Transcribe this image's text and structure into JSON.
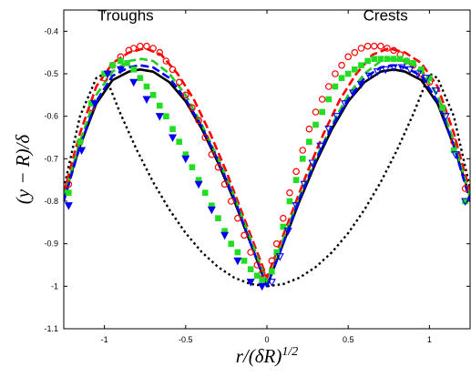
{
  "chart_data": {
    "type": "scatter",
    "xlabel": "r/(δR)^{1/2}",
    "ylabel": "(y − R)/δ",
    "xlim": [
      -1.25,
      1.25
    ],
    "ylim": [
      -1.1,
      -0.35
    ],
    "x_ticks": [
      -1,
      -0.5,
      0,
      0.5,
      1
    ],
    "x_tick_labels": [
      "-1",
      "-0.5",
      "0",
      "0.5",
      "1"
    ],
    "y_ticks": [
      -1.1,
      -1.0,
      -0.9,
      -0.8,
      -0.7,
      -0.6,
      -0.5,
      -0.4
    ],
    "y_tick_labels": [
      "-1.1",
      "-1",
      "-0.9",
      "-0.8",
      "-0.7",
      "-0.6",
      "-0.5",
      "-0.4"
    ],
    "grid": false,
    "annotations": [
      {
        "text": "Troughs",
        "x": -0.87,
        "y": -0.375
      },
      {
        "text": "Crests",
        "x": 0.73,
        "y": -0.375
      }
    ],
    "series": [
      {
        "style": "solid-line",
        "color": "#000000",
        "x": [
          -1.25,
          -1.15,
          -1.05,
          -0.95,
          -0.85,
          -0.78,
          -0.7,
          -0.6,
          -0.5,
          -0.4,
          -0.3,
          -0.2,
          -0.1,
          0,
          0.1,
          0.2,
          0.3,
          0.4,
          0.5,
          0.6,
          0.7,
          0.78,
          0.85,
          0.95,
          1.05,
          1.15,
          1.25
        ],
        "y": [
          -0.79,
          -0.67,
          -0.57,
          -0.515,
          -0.495,
          -0.49,
          -0.495,
          -0.52,
          -0.565,
          -0.63,
          -0.71,
          -0.8,
          -0.9,
          -1.0,
          -0.9,
          -0.8,
          -0.71,
          -0.63,
          -0.565,
          -0.52,
          -0.495,
          -0.49,
          -0.495,
          -0.515,
          -0.57,
          -0.67,
          -0.79
        ]
      },
      {
        "style": "dotted-line",
        "color": "#000000",
        "x": [
          -1.25,
          -1.15,
          -1.05,
          -1.0,
          -0.9,
          -0.8,
          -0.7,
          -0.6,
          -0.5,
          -0.4,
          -0.3,
          -0.2,
          -0.1,
          0,
          0.1,
          0.2,
          0.3,
          0.4,
          0.5,
          0.6,
          0.7,
          0.8,
          0.9,
          1.0,
          1.05,
          1.15,
          1.25
        ],
        "y": [
          -0.77,
          -0.6,
          -0.51,
          -0.5,
          -0.595,
          -0.68,
          -0.755,
          -0.82,
          -0.875,
          -0.92,
          -0.955,
          -0.98,
          -0.995,
          -1.0,
          -0.995,
          -0.98,
          -0.955,
          -0.92,
          -0.875,
          -0.82,
          -0.755,
          -0.68,
          -0.595,
          -0.5,
          -0.51,
          -0.6,
          -0.77
        ]
      },
      {
        "style": "dashed-line",
        "color": "#ff0000",
        "x": [
          -1.25,
          -1.15,
          -1.05,
          -0.95,
          -0.85,
          -0.75,
          -0.65,
          -0.55,
          -0.45,
          -0.35,
          -0.25,
          -0.15,
          -0.05,
          0,
          0.05,
          0.15,
          0.25,
          0.35,
          0.45,
          0.55,
          0.65,
          0.75,
          0.85,
          0.95,
          1.05,
          1.15,
          1.25
        ],
        "y": [
          -0.78,
          -0.64,
          -0.53,
          -0.475,
          -0.45,
          -0.44,
          -0.455,
          -0.5,
          -0.56,
          -0.64,
          -0.73,
          -0.83,
          -0.93,
          -0.98,
          -0.93,
          -0.83,
          -0.73,
          -0.64,
          -0.56,
          -0.5,
          -0.455,
          -0.44,
          -0.45,
          -0.475,
          -0.53,
          -0.64,
          -0.78
        ]
      },
      {
        "style": "dashed-line",
        "color": "#22cc22",
        "x": [
          -1.25,
          -1.15,
          -1.05,
          -0.95,
          -0.85,
          -0.77,
          -0.7,
          -0.6,
          -0.5,
          -0.4,
          -0.3,
          -0.2,
          -0.1,
          0,
          0.1,
          0.2,
          0.3,
          0.4,
          0.5,
          0.6,
          0.7,
          0.77,
          0.85,
          0.95,
          1.05,
          1.15,
          1.25
        ],
        "y": [
          -0.79,
          -0.66,
          -0.55,
          -0.495,
          -0.47,
          -0.465,
          -0.47,
          -0.5,
          -0.55,
          -0.62,
          -0.7,
          -0.79,
          -0.89,
          -0.99,
          -0.89,
          -0.79,
          -0.7,
          -0.62,
          -0.55,
          -0.5,
          -0.47,
          -0.465,
          -0.47,
          -0.495,
          -0.55,
          -0.66,
          -0.79
        ]
      },
      {
        "style": "dashed-line",
        "color": "#0000ee",
        "x": [
          -1.25,
          -1.15,
          -1.05,
          -0.95,
          -0.85,
          -0.78,
          -0.7,
          -0.6,
          -0.5,
          -0.4,
          -0.3,
          -0.2,
          -0.1,
          0,
          0.1,
          0.2,
          0.3,
          0.4,
          0.5,
          0.6,
          0.7,
          0.78,
          0.85,
          0.95,
          1.05,
          1.15,
          1.25
        ],
        "y": [
          -0.8,
          -0.67,
          -0.565,
          -0.505,
          -0.485,
          -0.48,
          -0.485,
          -0.51,
          -0.56,
          -0.625,
          -0.705,
          -0.795,
          -0.9,
          -1.0,
          -0.9,
          -0.795,
          -0.705,
          -0.625,
          -0.56,
          -0.51,
          -0.485,
          -0.48,
          -0.485,
          -0.505,
          -0.565,
          -0.67,
          -0.8
        ]
      },
      {
        "style": "markers",
        "marker": "circle",
        "color": "#ff0000",
        "x": [
          -1.22,
          -1.15,
          -1.08,
          -1.0,
          -0.95,
          -0.9,
          -0.85,
          -0.82,
          -0.78,
          -0.74,
          -0.7,
          -0.66,
          -0.62,
          -0.58,
          -0.54,
          -0.5,
          -0.46,
          -0.42,
          -0.38,
          -0.34,
          -0.3,
          -0.26,
          -0.22,
          -0.18,
          -0.14,
          -0.1,
          -0.06,
          -0.03,
          0.03,
          0.06,
          0.1,
          0.14,
          0.18,
          0.22,
          0.26,
          0.3,
          0.34,
          0.38,
          0.42,
          0.46,
          0.5,
          0.54,
          0.58,
          0.62,
          0.66,
          0.7,
          0.74,
          0.78,
          0.82,
          0.86,
          0.9,
          0.95,
          1.0,
          1.08,
          1.15,
          1.22
        ],
        "y": [
          -0.76,
          -0.66,
          -0.58,
          -0.51,
          -0.48,
          -0.46,
          -0.445,
          -0.44,
          -0.435,
          -0.435,
          -0.44,
          -0.45,
          -0.47,
          -0.49,
          -0.52,
          -0.55,
          -0.58,
          -0.61,
          -0.65,
          -0.69,
          -0.72,
          -0.76,
          -0.8,
          -0.84,
          -0.88,
          -0.92,
          -0.95,
          -0.97,
          -0.94,
          -0.9,
          -0.84,
          -0.78,
          -0.73,
          -0.68,
          -0.63,
          -0.59,
          -0.56,
          -0.53,
          -0.5,
          -0.48,
          -0.46,
          -0.45,
          -0.44,
          -0.435,
          -0.435,
          -0.435,
          -0.44,
          -0.445,
          -0.455,
          -0.47,
          -0.48,
          -0.5,
          -0.52,
          -0.58,
          -0.66,
          -0.77
        ]
      },
      {
        "style": "markers",
        "marker": "square",
        "color": "#22dd22",
        "x": [
          -1.22,
          -1.15,
          -1.08,
          -1.0,
          -0.95,
          -0.9,
          -0.86,
          -0.82,
          -0.78,
          -0.74,
          -0.7,
          -0.66,
          -0.62,
          -0.58,
          -0.54,
          -0.5,
          -0.46,
          -0.42,
          -0.38,
          -0.34,
          -0.3,
          -0.26,
          -0.22,
          -0.18,
          -0.14,
          -0.1,
          -0.06,
          -0.03,
          0.03,
          0.06,
          0.1,
          0.14,
          0.18,
          0.22,
          0.26,
          0.3,
          0.34,
          0.38,
          0.42,
          0.46,
          0.5,
          0.54,
          0.58,
          0.62,
          0.66,
          0.7,
          0.74,
          0.78,
          0.82,
          0.86,
          0.9,
          0.95,
          1.0,
          1.08,
          1.15,
          1.22
        ],
        "y": [
          -0.78,
          -0.66,
          -0.57,
          -0.5,
          -0.48,
          -0.47,
          -0.475,
          -0.49,
          -0.51,
          -0.53,
          -0.55,
          -0.575,
          -0.6,
          -0.63,
          -0.66,
          -0.69,
          -0.72,
          -0.75,
          -0.78,
          -0.81,
          -0.84,
          -0.87,
          -0.9,
          -0.92,
          -0.94,
          -0.96,
          -0.975,
          -0.985,
          -0.965,
          -0.92,
          -0.86,
          -0.8,
          -0.75,
          -0.7,
          -0.66,
          -0.62,
          -0.59,
          -0.56,
          -0.53,
          -0.51,
          -0.5,
          -0.49,
          -0.48,
          -0.47,
          -0.465,
          -0.465,
          -0.465,
          -0.465,
          -0.465,
          -0.47,
          -0.475,
          -0.49,
          -0.51,
          -0.58,
          -0.68,
          -0.8
        ]
      },
      {
        "style": "markers",
        "marker": "triangle-down",
        "color": "#0000ee",
        "x": [
          -1.22,
          -1.14,
          -1.06,
          -0.98,
          -0.9,
          -0.82,
          -0.74,
          -0.66,
          -0.58,
          -0.5,
          -0.42,
          -0.34,
          -0.26,
          -0.18,
          -0.1,
          -0.03
        ],
        "y": [
          -0.81,
          -0.68,
          -0.57,
          -0.5,
          -0.49,
          -0.52,
          -0.56,
          -0.6,
          -0.65,
          -0.7,
          -0.76,
          -0.82,
          -0.88,
          -0.94,
          -0.99,
          -1.0
        ]
      },
      {
        "style": "markers",
        "marker": "triangle-down-open",
        "color": "#0000ee",
        "x": [
          0.03,
          0.08,
          0.13,
          0.18,
          0.23,
          0.28,
          0.33,
          0.38,
          0.43,
          0.48,
          0.53,
          0.58,
          0.63,
          0.68,
          0.73,
          0.78,
          0.83,
          0.88,
          0.93,
          0.98,
          1.04,
          1.1,
          1.16,
          1.22
        ],
        "y": [
          -0.99,
          -0.93,
          -0.87,
          -0.81,
          -0.76,
          -0.71,
          -0.67,
          -0.63,
          -0.6,
          -0.57,
          -0.545,
          -0.525,
          -0.505,
          -0.495,
          -0.49,
          -0.485,
          -0.485,
          -0.49,
          -0.5,
          -0.51,
          -0.54,
          -0.6,
          -0.69,
          -0.8
        ]
      }
    ]
  }
}
